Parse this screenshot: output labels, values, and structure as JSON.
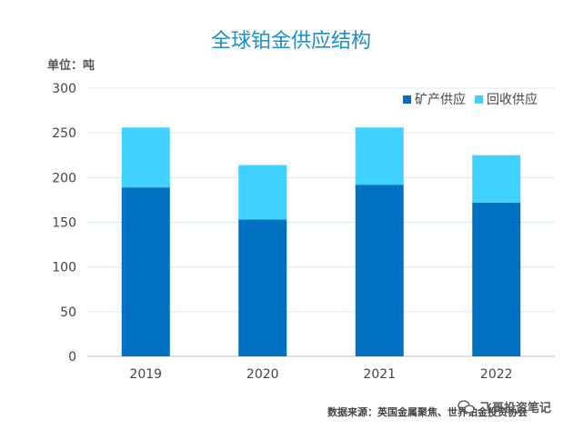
{
  "chart_data": {
    "type": "bar",
    "stacked": true,
    "title": "全球铂金供应结构",
    "unit_label": "单位：吨",
    "categories": [
      "2019",
      "2020",
      "2021",
      "2022"
    ],
    "series": [
      {
        "name": "矿产供应",
        "values": [
          189,
          153,
          192,
          172
        ],
        "color": "#0070c0"
      },
      {
        "name": "回收供应",
        "values": [
          67,
          61,
          64,
          53
        ],
        "color": "#3fd1ff"
      }
    ],
    "ylim": [
      0,
      300
    ],
    "yticks": [
      "0",
      "50",
      "100",
      "150",
      "200",
      "250",
      "300"
    ],
    "grid": true,
    "legend": "top-right",
    "source": "数据来源：英国金属聚焦、世界铂金投资协会"
  },
  "watermark": {
    "text": "飞哥投资笔记",
    "icon": "wechat-icon"
  }
}
